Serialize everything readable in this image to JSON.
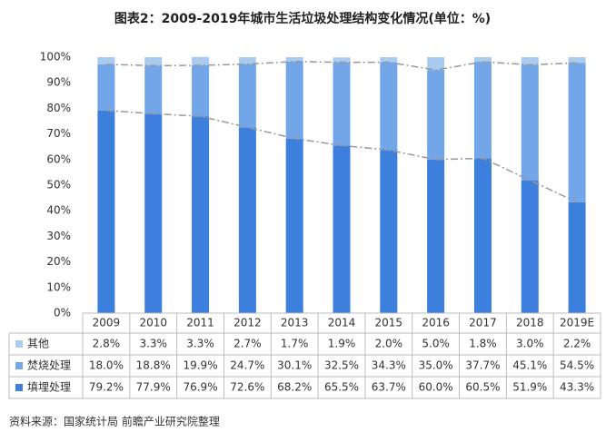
{
  "chart_data": {
    "type": "bar",
    "stacked": true,
    "title": "图表2：2009-2019年城市生活垃圾处理结构变化情况(单位：%)",
    "categories": [
      "2009",
      "2010",
      "2011",
      "2012",
      "2013",
      "2014",
      "2015",
      "2016",
      "2017",
      "2018",
      "2019E"
    ],
    "series": [
      {
        "name": "填埋处理",
        "color": "#3d7fdc",
        "values": [
          79.2,
          77.9,
          76.9,
          72.6,
          68.2,
          65.5,
          63.7,
          60.0,
          60.5,
          51.9,
          43.3
        ],
        "value_labels": [
          "79.2%",
          "77.9%",
          "76.9%",
          "72.6%",
          "68.2%",
          "65.5%",
          "63.7%",
          "60.0%",
          "60.5%",
          "51.9%",
          "43.3%"
        ]
      },
      {
        "name": "焚烧处理",
        "color": "#72a6e8",
        "values": [
          18.0,
          18.8,
          19.9,
          24.7,
          30.1,
          32.5,
          34.3,
          35.0,
          37.7,
          45.1,
          54.5
        ],
        "value_labels": [
          "18.0%",
          "18.8%",
          "19.9%",
          "24.7%",
          "30.1%",
          "32.5%",
          "34.3%",
          "35.0%",
          "37.7%",
          "45.1%",
          "54.5%"
        ]
      },
      {
        "name": "其他",
        "color": "#aacbf0",
        "values": [
          2.8,
          3.3,
          3.3,
          2.7,
          1.7,
          1.9,
          2.0,
          5.0,
          1.8,
          3.0,
          2.2
        ],
        "value_labels": [
          "2.8%",
          "3.3%",
          "3.3%",
          "2.7%",
          "1.7%",
          "1.9%",
          "2.0%",
          "5.0%",
          "1.8%",
          "3.0%",
          "2.2%"
        ]
      }
    ],
    "ylim": [
      0,
      100
    ],
    "yticks": [
      {
        "value": 0,
        "label": "0%"
      },
      {
        "value": 10,
        "label": "10%"
      },
      {
        "value": 20,
        "label": "20%"
      },
      {
        "value": 30,
        "label": "30%"
      },
      {
        "value": 40,
        "label": "40%"
      },
      {
        "value": 50,
        "label": "50%"
      },
      {
        "value": 60,
        "label": "60%"
      },
      {
        "value": 70,
        "label": "70%"
      },
      {
        "value": 80,
        "label": "80%"
      },
      {
        "value": 90,
        "label": "90%"
      },
      {
        "value": 100,
        "label": "100%"
      }
    ],
    "grid": false,
    "source": "资料来源：国家统计局 前瞻产业研究院整理"
  }
}
